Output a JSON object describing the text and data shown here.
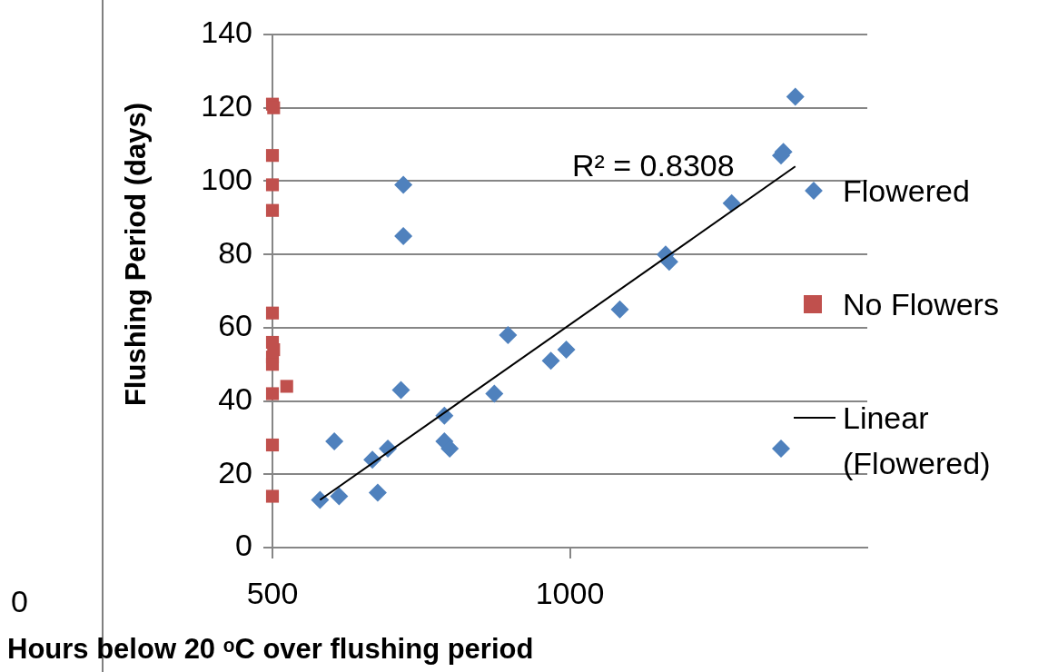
{
  "chart_data": {
    "type": "scatter",
    "xlabel": "Hours below 20 ᵒC over flushing period",
    "ylabel": "Flushing Period (days)",
    "xlim": [
      500,
      1500
    ],
    "xticks": [
      500,
      1000
    ],
    "ylim": [
      0,
      140
    ],
    "yticks": [
      0,
      20,
      40,
      60,
      80,
      100,
      120,
      140
    ],
    "grid": "y",
    "legend": "right",
    "annotations": [
      "R² = 0.8308",
      "0"
    ],
    "series": [
      {
        "name": "Flowered",
        "color": "#4f81bd",
        "marker": "diamond",
        "x": [
          580,
          612,
          604,
          677,
          668,
          694,
          716,
          720,
          720,
          789,
          789,
          798,
          873,
          896,
          968,
          994,
          1084,
          1161,
          1167,
          1272,
          1355,
          1359,
          1379,
          1355
        ],
        "values": [
          13,
          14,
          29,
          15,
          24,
          27,
          43,
          85,
          99,
          36,
          29,
          27,
          42,
          58,
          51,
          54,
          65,
          80,
          78,
          94,
          107,
          108,
          123,
          27
        ]
      },
      {
        "name": "No Flowers",
        "color": "#c0504d",
        "marker": "square",
        "x": [
          500,
          502,
          500,
          500,
          500,
          500,
          500,
          502,
          500,
          500,
          500,
          524,
          500,
          500
        ],
        "values": [
          121,
          120,
          107,
          99,
          92,
          64,
          56,
          54,
          52,
          50,
          42,
          44,
          28,
          14
        ]
      },
      {
        "name": "Linear (Flowered)",
        "type": "line",
        "color": "#000000",
        "marker": "none",
        "x": [
          580,
          1379
        ],
        "values": [
          13,
          104
        ]
      }
    ]
  }
}
